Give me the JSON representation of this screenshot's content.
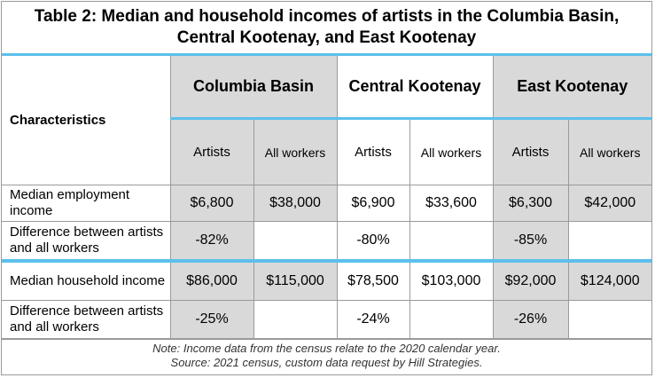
{
  "title": "Table 2: Median and household incomes of artists in the Columbia Basin, Central Kootenay, and East Kootenay",
  "header": {
    "characteristics": "Characteristics",
    "regions": [
      "Columbia Basin",
      "Central Kootenay",
      "East Kootenay"
    ],
    "sub_artists": "Artists",
    "sub_all_workers": "All workers"
  },
  "rows": [
    {
      "label": "Median employment income",
      "values": [
        "$6,800",
        "$38,000",
        "$6,900",
        "$33,600",
        "$6,300",
        "$42,000"
      ]
    },
    {
      "label": "Difference between artists and all workers",
      "values": [
        "-82%",
        "",
        "-80%",
        "",
        "-85%",
        ""
      ]
    },
    {
      "label": "Median household income",
      "values": [
        "$86,000",
        "$115,000",
        "$78,500",
        "$103,000",
        "$92,000",
        "$124,000"
      ]
    },
    {
      "label": "Difference between artists and all workers",
      "values": [
        "-25%",
        "",
        "-24%",
        "",
        "-26%",
        ""
      ]
    }
  ],
  "notes": {
    "line1": "Note: Income data from the census relate to the 2020 calendar year.",
    "line2": "Source: 2021 census, custom data request by Hill Strategies."
  },
  "colors": {
    "accent": "#5bc0eb",
    "shade": "#d9d9d9"
  }
}
